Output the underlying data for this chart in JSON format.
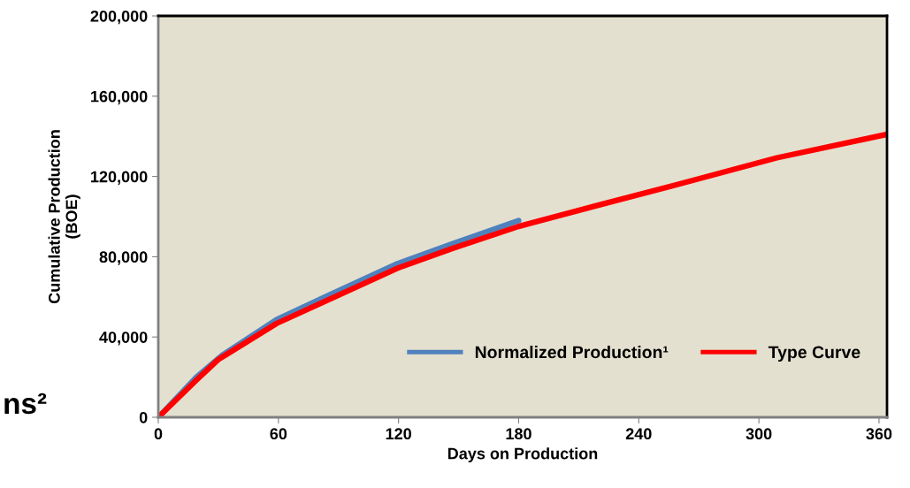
{
  "chart_data": {
    "type": "line",
    "xlabel": "Days on Production",
    "ylabel": "Cumulative Production\n(BOE)",
    "xlim": [
      0,
      364
    ],
    "xticks": [
      0,
      60,
      120,
      180,
      240,
      300,
      360
    ],
    "ylim": [
      0,
      200000
    ],
    "yticks": [
      {
        "value": 0,
        "label": "0"
      },
      {
        "value": 40000,
        "label": "40,000"
      },
      {
        "value": 80000,
        "label": "80,000"
      },
      {
        "value": 120000,
        "label": "120,000"
      },
      {
        "value": 160000,
        "label": "160,000"
      },
      {
        "value": 200000,
        "label": "200,000"
      }
    ],
    "series": [
      {
        "name": "Normalized Production¹",
        "color": "#4f81bd",
        "x": [
          0,
          19,
          32,
          59,
          84,
          119.5,
          146,
          180
        ],
        "values": [
          0,
          20000,
          31000,
          48600,
          60300,
          76600,
          86200,
          98000
        ]
      },
      {
        "name": "Type Curve",
        "color": "#ff0000",
        "x": [
          0,
          19,
          30,
          59,
          84,
          119.5,
          146,
          180,
          221,
          265,
          309,
          364
        ],
        "values": [
          0,
          18500,
          28800,
          46700,
          58100,
          74300,
          83800,
          95100,
          106000,
          117500,
          129300,
          141000
        ]
      }
    ],
    "legend": "bottom right",
    "grid": false,
    "marker": "none",
    "line_style": "solid",
    "annotations": [
      "ns²"
    ]
  }
}
